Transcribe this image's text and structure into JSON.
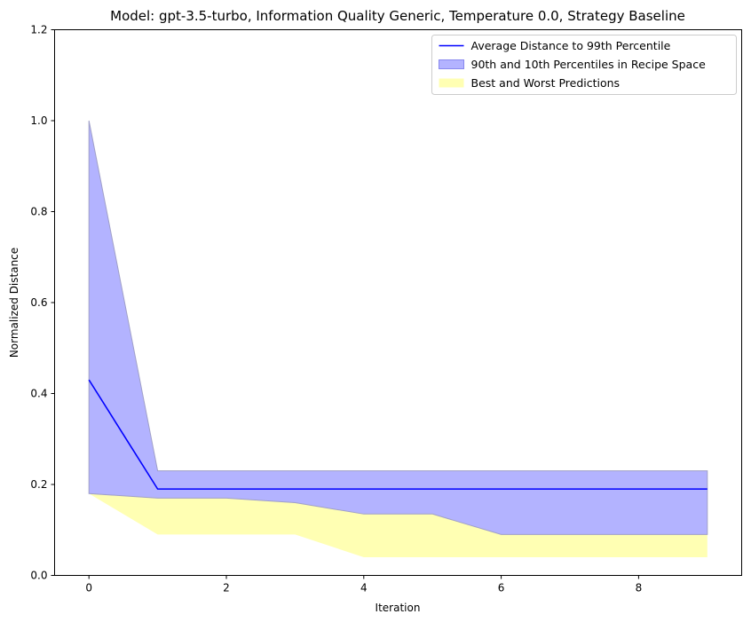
{
  "chart_data": {
    "type": "line",
    "title": "Model: gpt-3.5-turbo, Information Quality Generic, Temperature 0.0, Strategy Baseline",
    "xlabel": "Iteration",
    "ylabel": "Normalized Distance",
    "xlim": [
      -0.5,
      9.5
    ],
    "ylim": [
      0.0,
      1.2
    ],
    "x_ticks": [
      0,
      2,
      4,
      6,
      8
    ],
    "x_tick_labels": [
      "0",
      "2",
      "4",
      "6",
      "8"
    ],
    "y_ticks": [
      0.0,
      0.2,
      0.4,
      0.6,
      0.8,
      1.0,
      1.2
    ],
    "y_tick_labels": [
      "0.0",
      "0.2",
      "0.4",
      "0.6",
      "0.8",
      "1.0",
      "1.2"
    ],
    "grid": false,
    "legend_position": "top-right",
    "x": [
      0,
      1,
      2,
      3,
      4,
      5,
      6,
      7,
      8,
      9
    ],
    "series": [
      {
        "name": "Average Distance to 99th Percentile",
        "kind": "line",
        "color": "#0000ff",
        "values": [
          0.43,
          0.19,
          0.19,
          0.19,
          0.19,
          0.19,
          0.19,
          0.19,
          0.19,
          0.19
        ]
      },
      {
        "name": "90th and 10th Percentiles in Recipe Space",
        "kind": "band",
        "color": "#b3b3ff",
        "upper": [
          1.0,
          0.23,
          0.23,
          0.23,
          0.23,
          0.23,
          0.23,
          0.23,
          0.23,
          0.23
        ],
        "lower": [
          0.18,
          0.17,
          0.17,
          0.16,
          0.135,
          0.135,
          0.09,
          0.09,
          0.09,
          0.09
        ]
      },
      {
        "name": "Best and Worst Predictions",
        "kind": "band",
        "color": "#ffffb3",
        "upper": [
          0.18,
          0.17,
          0.17,
          0.16,
          0.135,
          0.135,
          0.09,
          0.09,
          0.09,
          0.09
        ],
        "lower": [
          0.18,
          0.09,
          0.09,
          0.09,
          0.04,
          0.04,
          0.04,
          0.04,
          0.04,
          0.04
        ]
      }
    ]
  }
}
